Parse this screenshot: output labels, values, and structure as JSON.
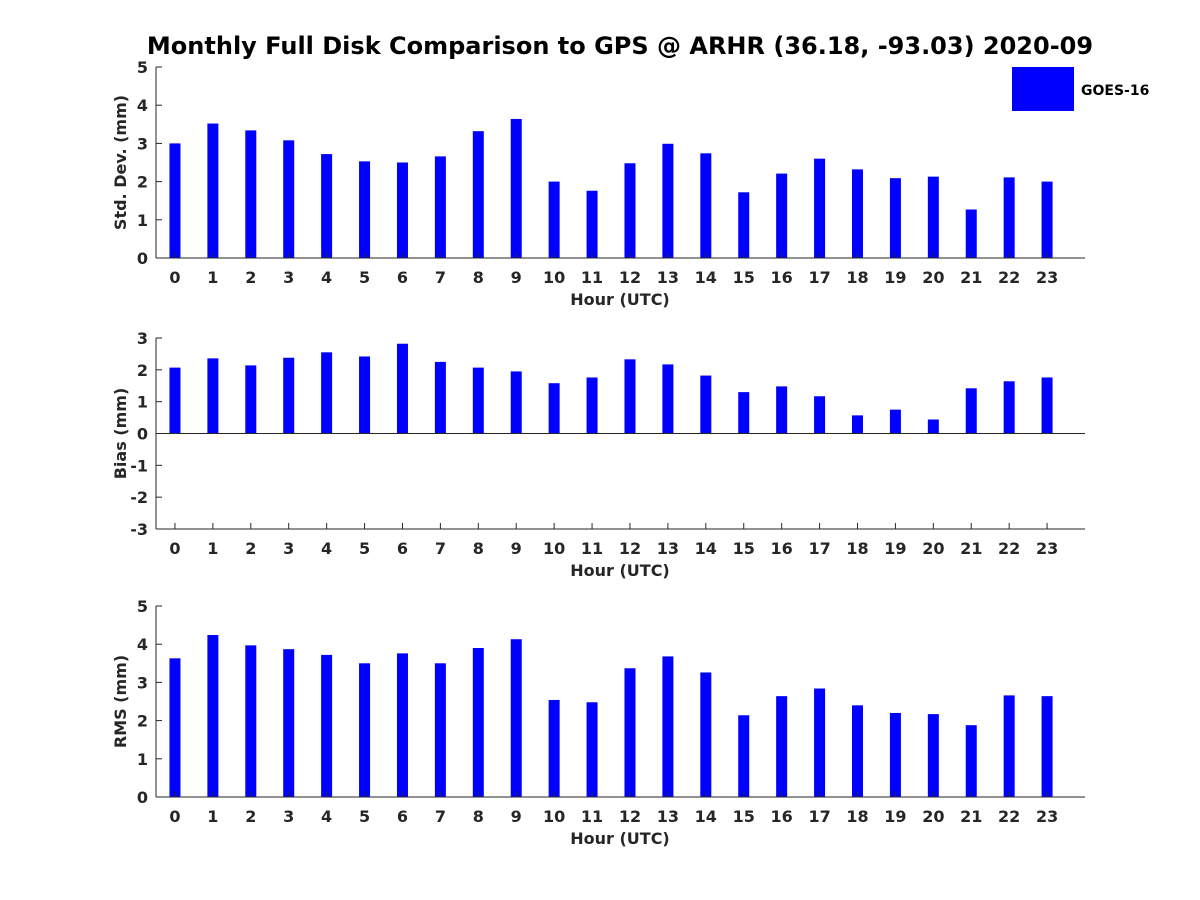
{
  "chart_data": {
    "title": "Monthly Full Disk Comparison to GPS @ ARHR (36.18, -93.03) 2020-09",
    "legend": {
      "label": "GOES-16",
      "color": "#0000ff",
      "position": "top-right"
    },
    "categories": [
      "0",
      "1",
      "2",
      "3",
      "4",
      "5",
      "6",
      "7",
      "8",
      "9",
      "10",
      "11",
      "12",
      "13",
      "14",
      "15",
      "16",
      "17",
      "18",
      "19",
      "20",
      "21",
      "22",
      "23"
    ],
    "subplots": [
      {
        "type": "bar",
        "ylabel": "Std. Dev. (mm)",
        "xlabel": "Hour (UTC)",
        "ylim": [
          0,
          5
        ],
        "yticks": [
          "0",
          "1",
          "2",
          "3",
          "4",
          "5"
        ],
        "series": [
          {
            "name": "GOES-16",
            "values": [
              3.0,
              3.52,
              3.34,
              3.08,
              2.72,
              2.53,
              2.5,
              2.66,
              3.32,
              3.64,
              2.0,
              1.76,
              2.48,
              2.99,
              2.74,
              1.72,
              2.21,
              2.6,
              2.32,
              2.09,
              2.13,
              1.27,
              2.11,
              2.0
            ]
          }
        ]
      },
      {
        "type": "bar",
        "ylabel": "Bias (mm)",
        "xlabel": "Hour (UTC)",
        "ylim": [
          -3,
          3
        ],
        "yticks": [
          "-3",
          "-2",
          "-1",
          "0",
          "1",
          "2",
          "3"
        ],
        "series": [
          {
            "name": "GOES-16",
            "values": [
              2.07,
              2.36,
              2.14,
              2.38,
              2.55,
              2.42,
              2.82,
              2.25,
              2.07,
              1.95,
              1.58,
              1.76,
              2.33,
              2.17,
              1.82,
              1.3,
              1.48,
              1.17,
              0.57,
              0.75,
              0.44,
              1.42,
              1.64,
              1.76
            ]
          }
        ]
      },
      {
        "type": "bar",
        "ylabel": "RMS (mm)",
        "xlabel": "Hour (UTC)",
        "ylim": [
          0,
          5
        ],
        "yticks": [
          "0",
          "1",
          "2",
          "3",
          "4",
          "5"
        ],
        "series": [
          {
            "name": "GOES-16",
            "values": [
              3.63,
              4.24,
              3.97,
              3.87,
              3.72,
              3.5,
              3.76,
              3.5,
              3.9,
              4.13,
              2.54,
              2.48,
              3.37,
              3.68,
              3.26,
              2.14,
              2.64,
              2.84,
              2.4,
              2.2,
              2.17,
              1.88,
              2.66,
              2.64
            ]
          }
        ]
      }
    ]
  }
}
